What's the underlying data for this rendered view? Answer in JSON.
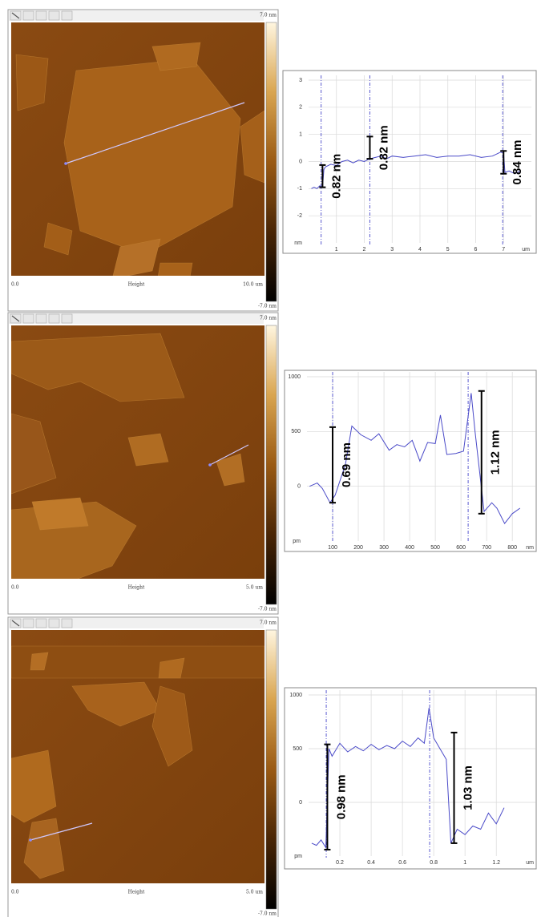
{
  "images": [
    {
      "scale_top": "7.0 nm",
      "scale_bottom": "-7.0 nm",
      "x_start": "0.0",
      "channel": "Height",
      "x_end": "10.0 um"
    },
    {
      "scale_top": "7.0 nm",
      "scale_bottom": "-7.0 nm",
      "x_start": "0.0",
      "channel": "Height",
      "x_end": "5.0 um"
    },
    {
      "scale_top": "7.0 nm",
      "scale_bottom": "-7.0 nm",
      "x_start": "0.0",
      "channel": "Height",
      "x_end": "5.0 um"
    }
  ],
  "chart_data": [
    {
      "type": "line",
      "color": "#4a4ac8",
      "grid": true,
      "x": [
        0.1,
        0.2,
        0.3,
        0.4,
        0.5,
        0.55,
        0.6,
        0.8,
        1.0,
        1.2,
        1.4,
        1.6,
        1.8,
        2.0,
        2.2,
        2.4,
        2.6,
        2.8,
        3.0,
        3.4,
        3.8,
        4.2,
        4.6,
        5.0,
        5.4,
        5.8,
        6.2,
        6.6,
        6.9,
        7.0,
        7.05,
        7.2,
        7.4,
        7.6
      ],
      "values": [
        -1.0,
        -0.95,
        -1.0,
        -0.9,
        -0.95,
        -0.3,
        -0.2,
        -0.1,
        -0.15,
        0.0,
        0.05,
        -0.05,
        0.05,
        0.0,
        0.1,
        0.15,
        0.2,
        0.1,
        0.2,
        0.15,
        0.2,
        0.25,
        0.15,
        0.2,
        0.2,
        0.25,
        0.15,
        0.2,
        0.35,
        0.3,
        -0.4,
        -0.35,
        -0.45,
        -0.35
      ],
      "xlim": [
        0,
        8
      ],
      "xticks": [
        1,
        2,
        3,
        4,
        5,
        6,
        7
      ],
      "ylim": [
        -3,
        3
      ],
      "yticks": [
        3,
        2,
        1,
        0,
        -1,
        -2
      ],
      "x_unit_label": "um",
      "y_unit_label": "nm",
      "cursors": [
        0.45,
        2.2,
        6.97
      ],
      "annotations": [
        {
          "text": "0.82 nm",
          "x": 0.5,
          "from": -0.95,
          "to": -0.13
        },
        {
          "text": "0.82 nm",
          "x": 2.2,
          "from": 0.1,
          "to": 0.92
        },
        {
          "text": "0.84 nm",
          "x": 7.0,
          "from": -0.45,
          "to": 0.39
        }
      ]
    },
    {
      "type": "line",
      "color": "#4a4ac8",
      "grid": true,
      "x": [
        10,
        40,
        60,
        90,
        110,
        150,
        175,
        210,
        250,
        280,
        320,
        350,
        380,
        410,
        440,
        470,
        500,
        520,
        545,
        580,
        610,
        640,
        655,
        690,
        720,
        740,
        770,
        800,
        830
      ],
      "values": [
        0,
        30,
        -20,
        -150,
        -80,
        200,
        550,
        470,
        420,
        480,
        330,
        380,
        360,
        420,
        230,
        400,
        390,
        650,
        290,
        300,
        320,
        850,
        500,
        -230,
        -150,
        -200,
        -340,
        -250,
        -200
      ],
      "xlim": [
        0,
        890
      ],
      "xticks": [
        100,
        200,
        300,
        400,
        500,
        600,
        700,
        800
      ],
      "ylim": [
        -500,
        1000
      ],
      "yticks": [
        1000,
        500,
        0
      ],
      "x_unit_label": "nm",
      "y_unit_label": "pm",
      "cursors": [
        100,
        628
      ],
      "annotations": [
        {
          "text": "0.69 nm",
          "x": 100,
          "from": -150,
          "to": 540
        },
        {
          "text": "1.12 nm",
          "x": 680,
          "from": -250,
          "to": 870
        }
      ]
    },
    {
      "type": "line",
      "color": "#4a4ac8",
      "grid": true,
      "x": [
        0.02,
        0.05,
        0.08,
        0.11,
        0.13,
        0.15,
        0.2,
        0.25,
        0.3,
        0.35,
        0.4,
        0.45,
        0.5,
        0.55,
        0.6,
        0.65,
        0.7,
        0.74,
        0.77,
        0.8,
        0.84,
        0.88,
        0.91,
        0.95,
        1.0,
        1.05,
        1.1,
        1.15,
        1.2,
        1.25
      ],
      "values": [
        -380,
        -400,
        -350,
        -420,
        500,
        430,
        550,
        470,
        520,
        480,
        540,
        490,
        530,
        500,
        570,
        520,
        600,
        550,
        880,
        600,
        500,
        400,
        -380,
        -250,
        -300,
        -220,
        -250,
        -100,
        -200,
        -50
      ],
      "xlim": [
        0,
        1.45
      ],
      "xticks": [
        0.2,
        0.4,
        0.6,
        0.8,
        1,
        1.2
      ],
      "ylim": [
        -500,
        1000
      ],
      "yticks": [
        1000,
        500,
        0
      ],
      "x_unit_label": "um",
      "y_unit_label": "pm",
      "cursors": [
        0.113,
        0.774
      ],
      "annotations": [
        {
          "text": "0.98 nm",
          "x": 0.12,
          "from": -440,
          "to": 540
        },
        {
          "text": "1.03 nm",
          "x": 0.93,
          "from": -380,
          "to": 650
        }
      ]
    }
  ]
}
